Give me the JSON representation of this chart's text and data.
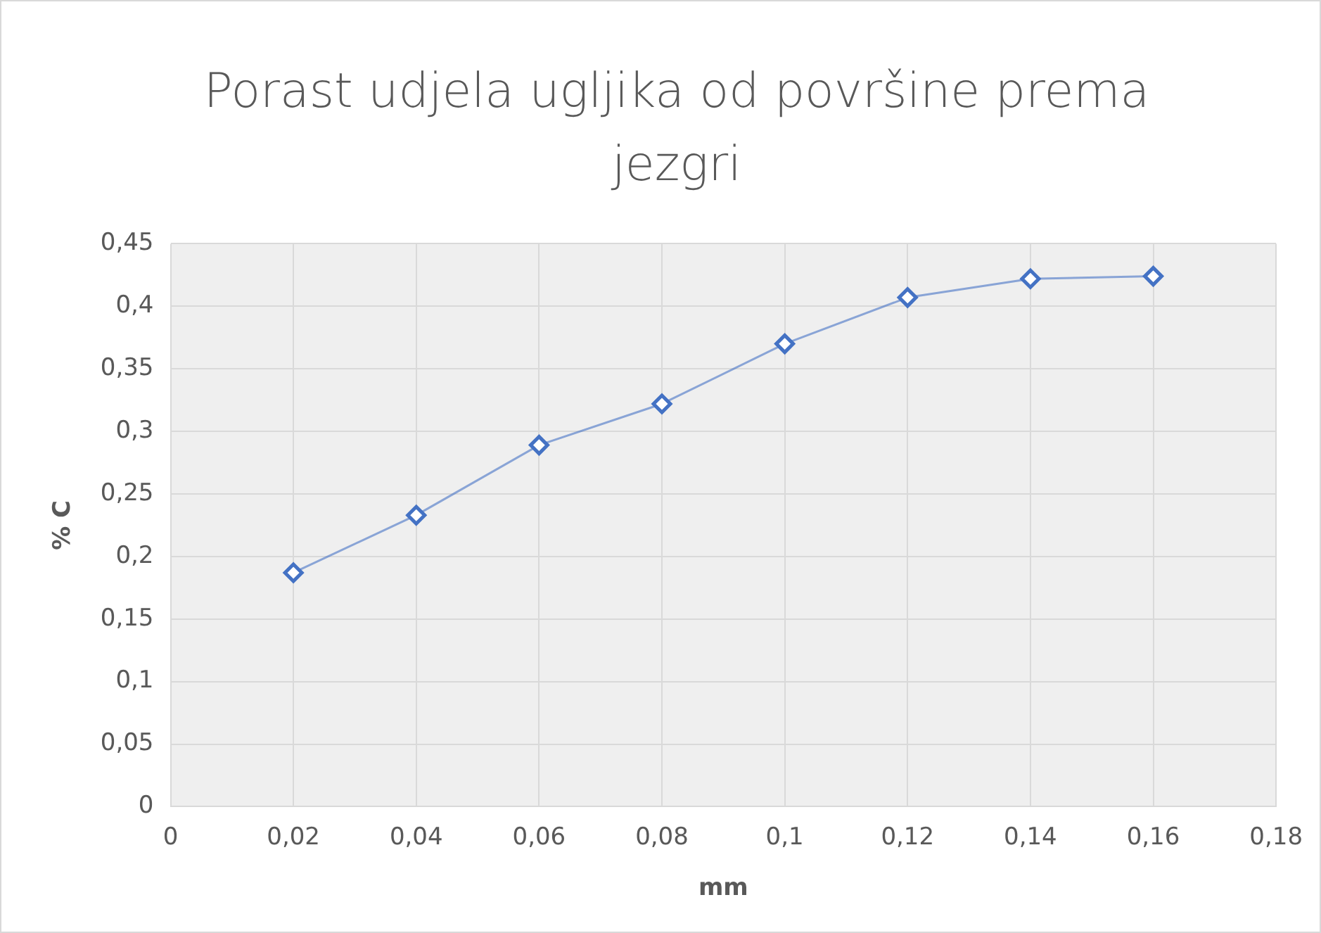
{
  "chart_data": {
    "type": "line",
    "title": "Porast udjela ugljika od površine prema jezgri",
    "xlabel": "mm",
    "ylabel": "% C",
    "x": [
      0.02,
      0.04,
      0.06,
      0.08,
      0.1,
      0.12,
      0.14,
      0.16
    ],
    "series": [
      {
        "color": "#4472c4",
        "values": [
          0.187,
          0.233,
          0.289,
          0.322,
          0.37,
          0.407,
          0.422,
          0.424
        ]
      }
    ],
    "xlim": [
      0,
      0.18
    ],
    "xticks": [
      0,
      {
        "value": 0.02,
        "label": "0,02"
      },
      {
        "value": 0.04,
        "label": "0,04"
      },
      {
        "value": 0.06,
        "label": "0,06"
      },
      {
        "value": 0.08,
        "label": "0,08"
      },
      {
        "value": 0.1,
        "label": "0,1"
      },
      {
        "value": 0.12,
        "label": "0,12"
      },
      {
        "value": 0.14,
        "label": "0,14"
      },
      {
        "value": 0.16,
        "label": "0,16"
      },
      {
        "value": 0.18,
        "label": "0,18"
      }
    ],
    "ylim": [
      0,
      0.45
    ],
    "yticks": [
      0,
      {
        "value": 0.05,
        "label": "0,05"
      },
      {
        "value": 0.1,
        "label": "0,1"
      },
      {
        "value": 0.15,
        "label": "0,15"
      },
      {
        "value": 0.2,
        "label": "0,2"
      },
      {
        "value": 0.25,
        "label": "0,25"
      },
      {
        "value": 0.3,
        "label": "0,3"
      },
      {
        "value": 0.35,
        "label": "0,35"
      },
      {
        "value": 0.4,
        "label": "0,4"
      },
      {
        "value": 0.45,
        "label": "0,45"
      }
    ],
    "grid": true,
    "legend": false,
    "marker": "diamond",
    "line_style": "solid"
  }
}
